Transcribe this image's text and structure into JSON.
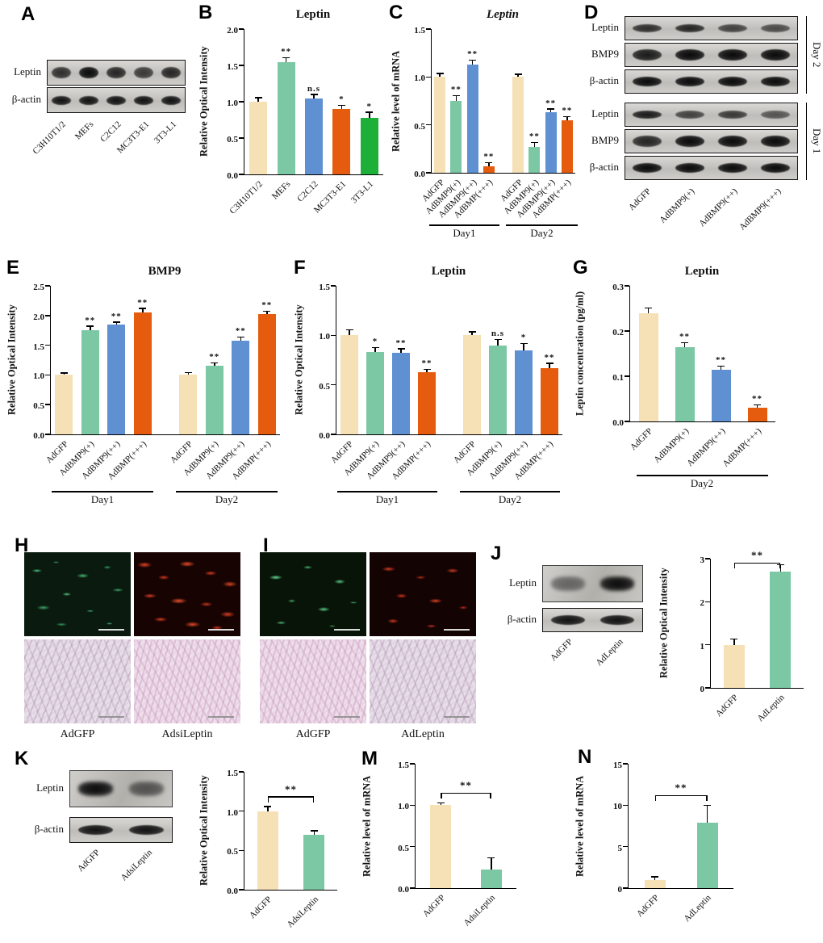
{
  "palette": {
    "tan": "#F6E0B5",
    "green": "#7CC7A4",
    "blue": "#5E90D2",
    "orange": "#E65C0F",
    "bright_green": "#1CB038"
  },
  "panels": {
    "A": {
      "letter": "A",
      "blot": {
        "rows": [
          {
            "label": "Leptin",
            "intensities": [
              0.8,
              1.0,
              0.85,
              0.75,
              0.85
            ],
            "thick": 14
          },
          {
            "label": "β-actin",
            "intensities": [
              0.95,
              0.95,
              0.95,
              0.95,
              0.95
            ],
            "thick": 11
          }
        ],
        "lane_labels": [
          "C3H10T1/2",
          "MEFs",
          "C2C12",
          "MC3T3-E1",
          "3T3-L1"
        ]
      }
    },
    "B": {
      "letter": "B"
    },
    "C": {
      "letter": "C"
    },
    "D": {
      "letter": "D",
      "blot": {
        "rows": [
          {
            "label": "Leptin",
            "intensities": [
              0.8,
              0.85,
              0.7,
              0.65
            ],
            "thick": 10
          },
          {
            "label": "BMP9",
            "intensities": [
              0.9,
              1.0,
              1.0,
              1.0
            ],
            "thick": 14
          },
          {
            "label": "β-actin",
            "intensities": [
              1.0,
              1.0,
              1.0,
              1.0
            ],
            "thick": 12
          },
          {
            "label": "Leptin",
            "intensities": [
              0.9,
              0.7,
              0.75,
              0.6
            ],
            "thick": 10
          },
          {
            "label": "BMP9",
            "intensities": [
              0.85,
              1.0,
              1.0,
              1.0
            ],
            "thick": 14
          },
          {
            "label": "β-actin",
            "intensities": [
              1.0,
              1.0,
              1.0,
              1.0
            ],
            "thick": 12
          }
        ],
        "lane_labels": [
          "AdGFP",
          "AdBMP9(+)",
          "AdBMP9(++)",
          "AdBMP9(+++)"
        ],
        "group_labels": [
          "Day 2",
          "Day 1"
        ]
      }
    },
    "E": {
      "letter": "E"
    },
    "F": {
      "letter": "F"
    },
    "G": {
      "letter": "G"
    },
    "H": {
      "letter": "H",
      "labels": [
        "AdGFP",
        "AdsiLeptin"
      ]
    },
    "I": {
      "letter": "I",
      "labels": [
        "AdGFP",
        "AdLeptin"
      ]
    },
    "J": {
      "letter": "J",
      "blot": {
        "rows": [
          {
            "label": "Leptin",
            "intensities": [
              0.5,
              1.0
            ],
            "thick": 18,
            "smudged": true
          },
          {
            "label": "β-actin",
            "intensities": [
              0.95,
              0.95
            ],
            "thick": 12
          }
        ],
        "lane_labels": [
          "AdGFP",
          "AdLeptin"
        ]
      }
    },
    "K": {
      "letter": "K",
      "blot": {
        "rows": [
          {
            "label": "Leptin",
            "intensities": [
              1.0,
              0.6
            ],
            "thick": 18,
            "smudged": true
          },
          {
            "label": "β-actin",
            "intensities": [
              0.95,
              0.95
            ],
            "thick": 12
          }
        ],
        "lane_labels": [
          "AdGFP",
          "AdsiLeptin"
        ]
      }
    },
    "M": {
      "letter": "M"
    },
    "N": {
      "letter": "N"
    }
  },
  "chart_data": [
    {
      "panel": "B",
      "type": "bar",
      "title": "Leptin",
      "ylabel": "Relative Optical Intensity",
      "ylim": [
        0,
        2.0
      ],
      "yticks": [
        0,
        0.5,
        1.0,
        1.5,
        2.0
      ],
      "ytick_decimals": 1,
      "categories": [
        "C3H10T1/2",
        "MEFs",
        "C2C12",
        "MC3T3-E1",
        "3T3-L1"
      ],
      "values": [
        1.0,
        1.55,
        1.05,
        0.9,
        0.78
      ],
      "errors": [
        0.05,
        0.05,
        0.04,
        0.04,
        0.07
      ],
      "sig": [
        "",
        "**",
        "n.s",
        "*",
        "*"
      ],
      "colors": [
        "tan",
        "green",
        "blue",
        "orange",
        "bright_green"
      ]
    },
    {
      "panel": "C",
      "type": "bar",
      "title": "Leptin",
      "title_italic": true,
      "ylabel": "Relative level of mRNA",
      "ylim": [
        0,
        1.5
      ],
      "yticks": [
        0,
        0.5,
        1.0,
        1.5
      ],
      "ytick_decimals": 1,
      "categories": [
        "AdGFP",
        "AdBMP9(+)",
        "AdBMP9(++)",
        "AdBMP(+++)",
        "AdGFP",
        "AdBMP9(+)",
        "AdBMP9(++)",
        "AdBMP(+++)"
      ],
      "values": [
        1.0,
        0.75,
        1.13,
        0.07,
        1.0,
        0.27,
        0.63,
        0.55
      ],
      "errors": [
        0.03,
        0.05,
        0.04,
        0.03,
        0.02,
        0.04,
        0.03,
        0.03
      ],
      "sig": [
        "",
        "**",
        "**",
        "**",
        "",
        "**",
        "**",
        "**"
      ],
      "colors": [
        "tan",
        "green",
        "blue",
        "orange",
        "tan",
        "green",
        "blue",
        "orange"
      ],
      "groups": [
        {
          "label": "Day1",
          "from": 0,
          "to": 3
        },
        {
          "label": "Day2",
          "from": 4,
          "to": 7
        }
      ]
    },
    {
      "panel": "E",
      "type": "bar",
      "title": "BMP9",
      "ylabel": "Relative Optical Intensity",
      "ylim": [
        0,
        2.5
      ],
      "yticks": [
        0,
        0.5,
        1.0,
        1.5,
        2.0,
        2.5
      ],
      "ytick_decimals": 1,
      "categories": [
        "AdGFP",
        "AdBMP9(+)",
        "AdBMP9(++)",
        "AdBMP(+++)",
        "AdGFP",
        "AdBMP9(+)",
        "AdBMP9(++)",
        "AdBMP(+++)"
      ],
      "values": [
        1.0,
        1.75,
        1.85,
        2.05,
        1.0,
        1.15,
        1.58,
        2.02
      ],
      "errors": [
        0.02,
        0.06,
        0.03,
        0.06,
        0.03,
        0.04,
        0.05,
        0.04
      ],
      "sig": [
        "",
        "**",
        "**",
        "**",
        "",
        "**",
        "**",
        "**"
      ],
      "colors": [
        "tan",
        "green",
        "blue",
        "orange",
        "tan",
        "green",
        "blue",
        "orange"
      ],
      "groups": [
        {
          "label": "Day1",
          "from": 0,
          "to": 3
        },
        {
          "label": "Day2",
          "from": 4,
          "to": 7
        }
      ]
    },
    {
      "panel": "F",
      "type": "bar",
      "title": "Leptin",
      "ylabel": "Relative Optical Intensity",
      "ylim": [
        0,
        1.5
      ],
      "yticks": [
        0,
        0.5,
        1.0,
        1.5
      ],
      "ytick_decimals": 1,
      "categories": [
        "AdGFP",
        "AdBMP9(+)",
        "AdBMP9(++)",
        "AdBMP(+++)",
        "AdGFP",
        "AdBMP9(+)",
        "AdBMP9(++)",
        "AdBMP(+++)"
      ],
      "values": [
        1.0,
        0.83,
        0.82,
        0.63,
        1.0,
        0.9,
        0.85,
        0.67
      ],
      "errors": [
        0.05,
        0.04,
        0.04,
        0.02,
        0.03,
        0.05,
        0.06,
        0.04
      ],
      "sig": [
        "",
        "*",
        "**",
        "**",
        "",
        "n.s",
        "*",
        "**"
      ],
      "colors": [
        "tan",
        "green",
        "blue",
        "orange",
        "tan",
        "green",
        "blue",
        "orange"
      ],
      "groups": [
        {
          "label": "Day1",
          "from": 0,
          "to": 3
        },
        {
          "label": "Day2",
          "from": 4,
          "to": 7
        }
      ]
    },
    {
      "panel": "G",
      "type": "bar",
      "title": "Leptin",
      "ylabel": "Leptin concentration (pg/ml)",
      "ylim": [
        0,
        0.3
      ],
      "yticks": [
        0,
        0.1,
        0.2,
        0.3
      ],
      "ytick_decimals": 1,
      "categories": [
        "AdGFP",
        "AdBMP9(+)",
        "AdBMP9(++)",
        "AdBMP(+++)"
      ],
      "values": [
        0.24,
        0.165,
        0.115,
        0.03
      ],
      "errors": [
        0.01,
        0.008,
        0.006,
        0.005
      ],
      "sig": [
        "",
        "**",
        "**",
        "**"
      ],
      "colors": [
        "tan",
        "green",
        "blue",
        "orange"
      ],
      "groups": [
        {
          "label": "Day2",
          "from": 0,
          "to": 3
        }
      ]
    },
    {
      "panel": "J",
      "type": "bar",
      "ylabel": "Relative Optical Intensity",
      "ylim": [
        0,
        3
      ],
      "yticks": [
        0,
        1,
        2,
        3
      ],
      "ytick_decimals": 0,
      "categories": [
        "AdGFP",
        "AdLeptin"
      ],
      "values": [
        1.0,
        2.7
      ],
      "errors": [
        0.12,
        0.15
      ],
      "colors": [
        "tan",
        "green"
      ],
      "bracket": {
        "sig": "**"
      }
    },
    {
      "panel": "K",
      "type": "bar",
      "ylabel": "Relative Optical Intensity",
      "ylim": [
        0,
        1.5
      ],
      "yticks": [
        0,
        0.5,
        1.0,
        1.5
      ],
      "ytick_decimals": 1,
      "categories": [
        "AdGFP",
        "AdsiLeptin"
      ],
      "values": [
        1.0,
        0.7
      ],
      "errors": [
        0.05,
        0.04
      ],
      "colors": [
        "tan",
        "green"
      ],
      "bracket": {
        "sig": "**"
      }
    },
    {
      "panel": "M",
      "type": "bar",
      "ylabel": "Relative level of mRNA",
      "ylim": [
        0,
        1.5
      ],
      "yticks": [
        0,
        0.5,
        1.0,
        1.5
      ],
      "ytick_decimals": 1,
      "categories": [
        "AdGFP",
        "AdsiLeptin"
      ],
      "values": [
        1.0,
        0.22
      ],
      "errors": [
        0.02,
        0.14
      ],
      "colors": [
        "tan",
        "green"
      ],
      "bracket": {
        "sig": "**"
      }
    },
    {
      "panel": "N",
      "type": "bar",
      "ylabel": "Relative level of mRNA",
      "ylim": [
        0,
        15
      ],
      "yticks": [
        0,
        5,
        10,
        15
      ],
      "ytick_decimals": 0,
      "categories": [
        "AdGFP",
        "AdLeptin"
      ],
      "values": [
        1.0,
        7.9
      ],
      "errors": [
        0.3,
        2.0
      ],
      "colors": [
        "tan",
        "green"
      ],
      "bracket": {
        "sig": "**"
      }
    }
  ]
}
